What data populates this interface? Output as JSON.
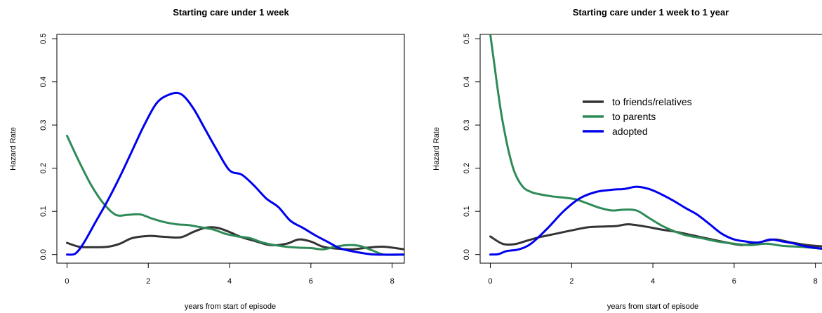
{
  "chart_data": [
    {
      "type": "line",
      "title": "Starting care under 1 week",
      "xlabel": "years from start of episode",
      "ylabel": "Hazard Rate",
      "xlim": [
        -0.25,
        8.3
      ],
      "ylim": [
        -0.02,
        0.51
      ],
      "xticks": [
        0,
        2,
        4,
        6,
        8
      ],
      "xtick_labels": [
        "0",
        "2",
        "4",
        "6",
        "8"
      ],
      "yticks": [
        0.0,
        0.1,
        0.2,
        0.3,
        0.4,
        0.5
      ],
      "ytick_labels": [
        "0.0",
        "0.1",
        "0.2",
        "0.3",
        "0.4",
        "0.5"
      ],
      "grid": false,
      "legend": null,
      "series": [
        {
          "name": "to friends/relatives",
          "color": "#333333",
          "x": [
            0,
            0.3,
            0.6,
            1.0,
            1.3,
            1.6,
            2.0,
            2.4,
            2.8,
            3.1,
            3.4,
            3.7,
            4.0,
            4.3,
            4.6,
            5.0,
            5.4,
            5.7,
            6.0,
            6.3,
            6.6,
            7.0,
            7.4,
            7.8,
            8.3
          ],
          "y": [
            0.027,
            0.018,
            0.017,
            0.018,
            0.025,
            0.038,
            0.043,
            0.041,
            0.04,
            0.052,
            0.062,
            0.062,
            0.052,
            0.04,
            0.032,
            0.022,
            0.025,
            0.035,
            0.03,
            0.018,
            0.014,
            0.012,
            0.016,
            0.018,
            0.012
          ]
        },
        {
          "name": "to parents",
          "color": "#2e8b57",
          "x": [
            0,
            0.3,
            0.6,
            0.9,
            1.2,
            1.5,
            1.8,
            2.1,
            2.4,
            2.7,
            3.0,
            3.3,
            3.6,
            3.9,
            4.2,
            4.5,
            4.8,
            5.1,
            5.4,
            5.7,
            6.0,
            6.3,
            6.6,
            6.9,
            7.2,
            7.5,
            7.8,
            8.3
          ],
          "y": [
            0.275,
            0.215,
            0.16,
            0.118,
            0.092,
            0.092,
            0.093,
            0.083,
            0.075,
            0.07,
            0.068,
            0.063,
            0.058,
            0.048,
            0.042,
            0.038,
            0.028,
            0.022,
            0.018,
            0.016,
            0.015,
            0.012,
            0.018,
            0.022,
            0.02,
            0.01,
            0.0,
            0.0
          ]
        },
        {
          "name": "adopted",
          "color": "#0000ee",
          "x": [
            0,
            0.2,
            0.4,
            0.7,
            1.0,
            1.3,
            1.6,
            1.9,
            2.2,
            2.5,
            2.8,
            3.1,
            3.4,
            3.7,
            4.0,
            4.3,
            4.6,
            4.9,
            5.2,
            5.5,
            5.8,
            6.1,
            6.4,
            6.7,
            7.0,
            7.3,
            7.6,
            8.3
          ],
          "y": [
            0.0,
            0.002,
            0.025,
            0.075,
            0.125,
            0.18,
            0.24,
            0.3,
            0.35,
            0.37,
            0.372,
            0.34,
            0.29,
            0.24,
            0.195,
            0.185,
            0.16,
            0.13,
            0.11,
            0.078,
            0.062,
            0.045,
            0.03,
            0.015,
            0.008,
            0.003,
            0.0,
            0.0
          ]
        }
      ]
    },
    {
      "type": "line",
      "title": "Starting care under 1 week to 1 year",
      "xlabel": "years from start of episode",
      "ylabel": "Hazard Rate",
      "xlim": [
        -0.25,
        8.3
      ],
      "ylim": [
        -0.02,
        0.51
      ],
      "xticks": [
        0,
        2,
        4,
        6,
        8
      ],
      "xtick_labels": [
        "0",
        "2",
        "4",
        "6",
        "8"
      ],
      "yticks": [
        0.0,
        0.1,
        0.2,
        0.3,
        0.4,
        0.5
      ],
      "ytick_labels": [
        "0.0",
        "0.1",
        "0.2",
        "0.3",
        "0.4",
        "0.5"
      ],
      "grid": false,
      "legend": {
        "position": "upper-center",
        "entries": [
          {
            "label": "to friends/relatives",
            "color": "#333333"
          },
          {
            "label": "to parents",
            "color": "#2e8b57"
          },
          {
            "label": "adopted",
            "color": "#0000ee"
          }
        ]
      },
      "series": [
        {
          "name": "to friends/relatives",
          "color": "#333333",
          "x": [
            0,
            0.3,
            0.6,
            0.9,
            1.2,
            1.6,
            2.0,
            2.4,
            2.8,
            3.1,
            3.4,
            3.8,
            4.2,
            4.6,
            5.0,
            5.4,
            5.8,
            6.2,
            6.6,
            7.0,
            7.4,
            7.8,
            8.3
          ],
          "y": [
            0.042,
            0.025,
            0.024,
            0.032,
            0.04,
            0.048,
            0.056,
            0.063,
            0.065,
            0.066,
            0.07,
            0.065,
            0.058,
            0.052,
            0.044,
            0.036,
            0.028,
            0.022,
            0.028,
            0.035,
            0.028,
            0.022,
            0.018
          ]
        },
        {
          "name": "to parents",
          "color": "#2e8b57",
          "x": [
            0,
            0.1,
            0.2,
            0.3,
            0.45,
            0.6,
            0.8,
            1.0,
            1.2,
            1.5,
            1.8,
            2.1,
            2.4,
            2.7,
            3.0,
            3.3,
            3.6,
            3.9,
            4.2,
            4.5,
            4.8,
            5.2,
            5.6,
            6.0,
            6.4,
            6.8,
            7.2,
            7.6,
            8.0,
            8.3
          ],
          "y": [
            0.51,
            0.44,
            0.37,
            0.31,
            0.24,
            0.19,
            0.157,
            0.145,
            0.14,
            0.135,
            0.132,
            0.128,
            0.118,
            0.108,
            0.102,
            0.104,
            0.102,
            0.085,
            0.068,
            0.055,
            0.045,
            0.038,
            0.03,
            0.025,
            0.022,
            0.025,
            0.02,
            0.018,
            0.015,
            0.012
          ]
        },
        {
          "name": "adopted",
          "color": "#0000ee",
          "x": [
            0,
            0.2,
            0.4,
            0.7,
            1.0,
            1.4,
            1.8,
            2.2,
            2.6,
            3.0,
            3.3,
            3.6,
            3.9,
            4.2,
            4.5,
            4.8,
            5.1,
            5.4,
            5.7,
            6.0,
            6.3,
            6.6,
            6.9,
            7.2,
            7.5,
            7.8,
            8.3
          ],
          "y": [
            0.0,
            0.001,
            0.008,
            0.012,
            0.025,
            0.06,
            0.1,
            0.13,
            0.145,
            0.15,
            0.152,
            0.157,
            0.152,
            0.14,
            0.125,
            0.108,
            0.092,
            0.07,
            0.048,
            0.035,
            0.03,
            0.028,
            0.035,
            0.03,
            0.025,
            0.018,
            0.012
          ]
        }
      ]
    }
  ]
}
